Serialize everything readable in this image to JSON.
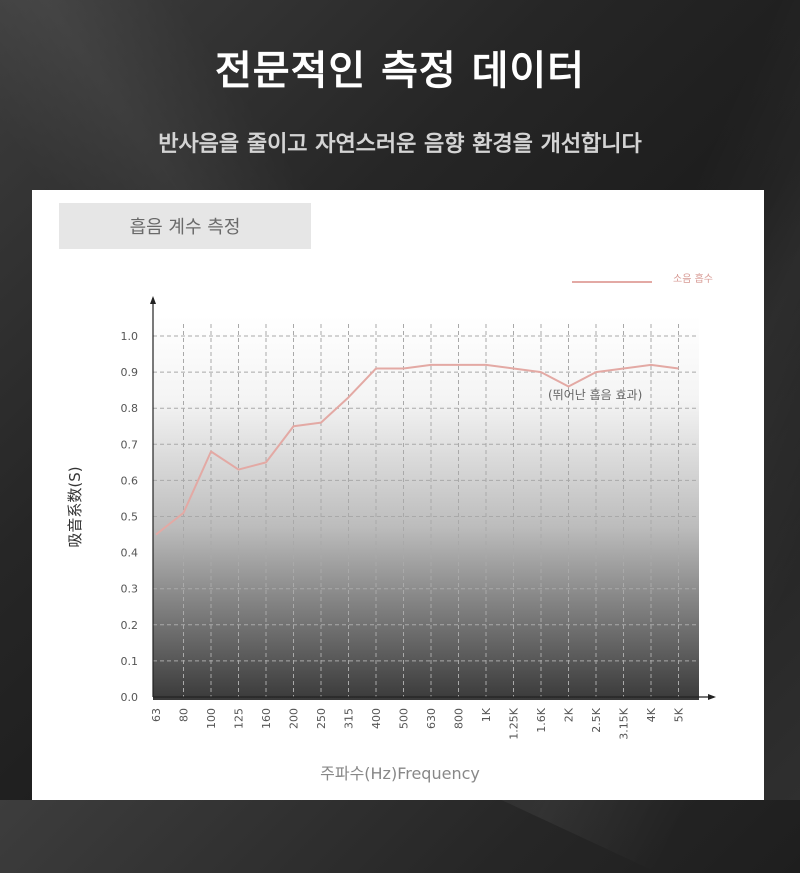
{
  "header": {
    "title": "전문적인 측정 데이터",
    "subtitle": "반사음을 줄이고 자연스러운 음향 환경을 개선합니다"
  },
  "card": {
    "title": "흡음 계수 측정"
  },
  "chart_data": {
    "type": "line",
    "ylabel": "吸音系数(S)",
    "xlabel": "주파수(Hz)Frequency",
    "ylim": [
      0.0,
      1.0
    ],
    "yticks": [
      "0.0",
      "0.1",
      "0.2",
      "0.3",
      "0.4",
      "0.5",
      "0.6",
      "0.7",
      "0.8",
      "0.9",
      "1.0"
    ],
    "categories": [
      "63",
      "80",
      "100",
      "125",
      "160",
      "200",
      "250",
      "315",
      "400",
      "500",
      "630",
      "800",
      "1K",
      "1.25K",
      "1.6K",
      "2K",
      "2.5K",
      "3.15K",
      "4K",
      "5K"
    ],
    "series": [
      {
        "name": "소음 흡수",
        "color": "#e3a9a4",
        "values": [
          0.45,
          0.51,
          0.68,
          0.63,
          0.65,
          0.75,
          0.76,
          0.83,
          0.91,
          0.91,
          0.92,
          0.92,
          0.92,
          0.91,
          0.9,
          0.86,
          0.9,
          0.91,
          0.92,
          0.91
        ]
      }
    ],
    "annotation": "(뛰어난 흡음 효과)",
    "grid": true,
    "legend": "top-right"
  }
}
